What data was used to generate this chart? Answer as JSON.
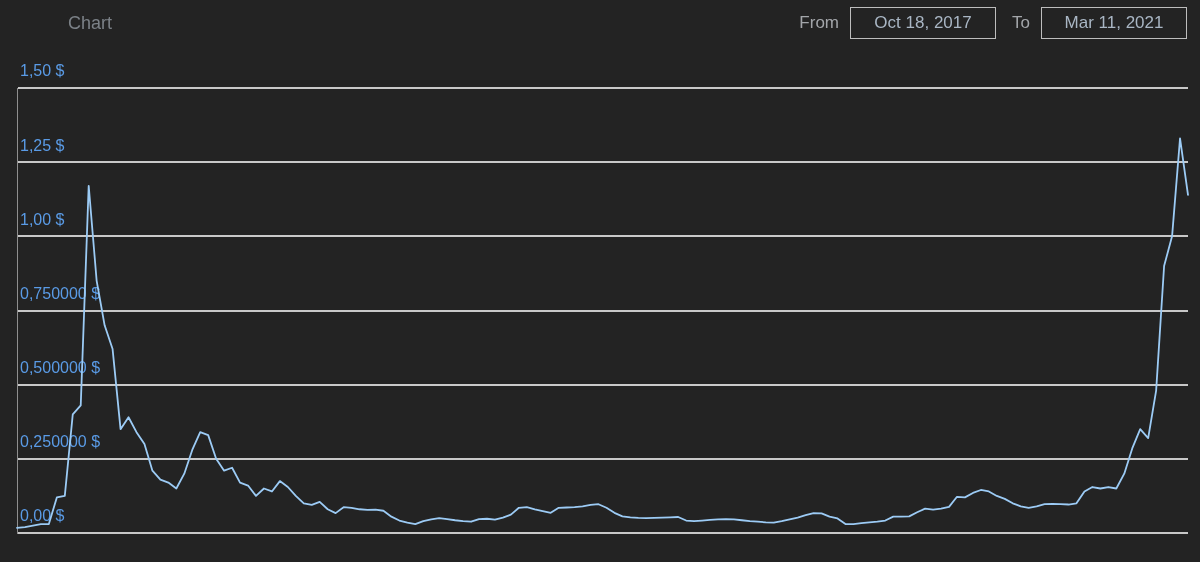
{
  "chart_data": {
    "type": "line",
    "title": "Chart",
    "annotations": [
      "From",
      "Oct 18, 2017",
      "To",
      "Mar 11, 2021"
    ],
    "categories": [
      null,
      null,
      null,
      null,
      null,
      null,
      null,
      null,
      null,
      null,
      null,
      null,
      null,
      null,
      null,
      null,
      null,
      null,
      null,
      null,
      null,
      null,
      null,
      null,
      null,
      null,
      null,
      null,
      null,
      null,
      null,
      null,
      null,
      null,
      null,
      null,
      null,
      null,
      null,
      null,
      null,
      null,
      null,
      null,
      null,
      null,
      null,
      null,
      null,
      null,
      null,
      null,
      null,
      null,
      null,
      null,
      null,
      null,
      null,
      null,
      null,
      null,
      null,
      null,
      null,
      null,
      null,
      null,
      null,
      null,
      null,
      null,
      null,
      null,
      null,
      null,
      null,
      null,
      null,
      null,
      null,
      null,
      null,
      null,
      null,
      null,
      null,
      null,
      null,
      null,
      null,
      null,
      null,
      null,
      null,
      null,
      null,
      null,
      null,
      null,
      null,
      null,
      null,
      null,
      null,
      null,
      null,
      null,
      null,
      null,
      null,
      null,
      null,
      null,
      null,
      null,
      null,
      null,
      null,
      null,
      null,
      null,
      null,
      null,
      null,
      null,
      null,
      null,
      null,
      null,
      null,
      null,
      null,
      null,
      null,
      null,
      null,
      null,
      null,
      null,
      null,
      null,
      null,
      null,
      null,
      null,
      null,
      null
    ],
    "values": [
      0.017,
      0.02,
      0.025,
      0.03,
      0.03,
      0.12,
      0.125,
      0.4,
      0.43,
      1.17,
      0.85,
      0.7,
      0.62,
      0.35,
      0.39,
      0.34,
      0.3,
      0.21,
      0.18,
      0.17,
      0.15,
      0.2,
      0.28,
      0.34,
      0.33,
      0.25,
      0.21,
      0.22,
      0.17,
      0.16,
      0.125,
      0.15,
      0.14,
      0.175,
      0.155,
      0.125,
      0.1,
      0.095,
      0.105,
      0.08,
      0.067,
      0.087,
      0.085,
      0.08,
      0.078,
      0.079,
      0.075,
      0.055,
      0.042,
      0.035,
      0.03,
      0.04,
      0.046,
      0.05,
      0.047,
      0.043,
      0.04,
      0.038,
      0.047,
      0.048,
      0.045,
      0.052,
      0.062,
      0.085,
      0.087,
      0.08,
      0.074,
      0.068,
      0.085,
      0.086,
      0.087,
      0.09,
      0.095,
      0.097,
      0.085,
      0.068,
      0.056,
      0.053,
      0.051,
      0.05,
      0.051,
      0.052,
      0.053,
      0.054,
      0.042,
      0.04,
      0.042,
      0.044,
      0.046,
      0.047,
      0.046,
      0.043,
      0.04,
      0.038,
      0.036,
      0.035,
      0.04,
      0.046,
      0.052,
      0.06,
      0.067,
      0.066,
      0.055,
      0.049,
      0.03,
      0.03,
      0.033,
      0.036,
      0.038,
      0.042,
      0.055,
      0.055,
      0.056,
      0.07,
      0.082,
      0.079,
      0.082,
      0.088,
      0.122,
      0.12,
      0.135,
      0.145,
      0.14,
      0.125,
      0.115,
      0.1,
      0.09,
      0.085,
      0.09,
      0.097,
      0.098,
      0.097,
      0.096,
      0.1,
      0.14,
      0.155,
      0.15,
      0.155,
      0.15,
      0.2,
      0.285,
      0.35,
      0.32,
      0.48,
      0.9,
      1.0,
      1.33,
      1.14
    ],
    "color": "#9ccbf5",
    "ylim": [
      0,
      1.5
    ],
    "yticks": [
      {
        "value": 0,
        "label": "0,00 $"
      },
      {
        "value": 0.25,
        "label": "0,250000 $"
      },
      {
        "value": 0.5,
        "label": "0,500000 $"
      },
      {
        "value": 0.75,
        "label": "0,750000 $"
      },
      {
        "value": 1,
        "label": "1,00 $"
      },
      {
        "value": 1.25,
        "label": "1,25 $"
      },
      {
        "value": 1.5,
        "label": "1,50 $"
      }
    ],
    "grid": "y",
    "marker": "none"
  }
}
